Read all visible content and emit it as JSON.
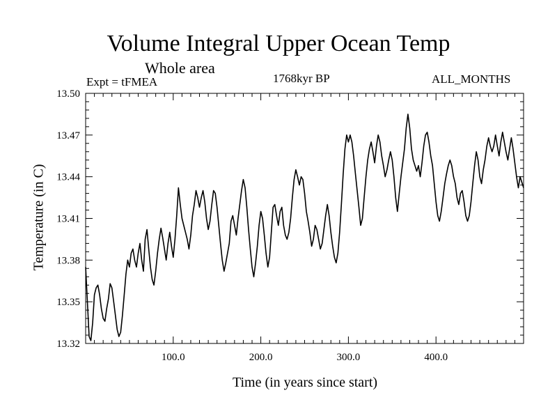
{
  "chart_data": {
    "type": "line",
    "title": "Volume Integral Upper Ocean Temp",
    "subtitle": "Whole area",
    "annotations": {
      "left": "Expt = tFMEA",
      "center": "1768kyr BP",
      "right": "ALL_MONTHS"
    },
    "xlabel": "Time (in years since start)",
    "ylabel": "Temperature (in C)",
    "xlim": [
      0,
      500
    ],
    "ylim": [
      13.32,
      13.5
    ],
    "xticks": [
      100,
      200,
      300,
      400
    ],
    "xtick_labels": [
      "100.0",
      "200.0",
      "300.0",
      "400.0"
    ],
    "yticks": [
      13.32,
      13.35,
      13.38,
      13.41,
      13.44,
      13.47,
      13.5
    ],
    "ytick_labels": [
      "13.32",
      "13.35",
      "13.38",
      "13.41",
      "13.44",
      "13.47",
      "13.50"
    ],
    "series": [
      {
        "name": "Volume Integral Upper Ocean Temp",
        "color": "#000000",
        "points": [
          [
            0,
            13.375
          ],
          [
            2,
            13.35
          ],
          [
            4,
            13.325
          ],
          [
            6,
            13.322
          ],
          [
            8,
            13.335
          ],
          [
            10,
            13.355
          ],
          [
            12,
            13.36
          ],
          [
            14,
            13.362
          ],
          [
            16,
            13.355
          ],
          [
            18,
            13.345
          ],
          [
            20,
            13.338
          ],
          [
            22,
            13.336
          ],
          [
            24,
            13.345
          ],
          [
            26,
            13.352
          ],
          [
            28,
            13.363
          ],
          [
            30,
            13.36
          ],
          [
            32,
            13.35
          ],
          [
            34,
            13.34
          ],
          [
            36,
            13.33
          ],
          [
            38,
            13.325
          ],
          [
            40,
            13.328
          ],
          [
            42,
            13.34
          ],
          [
            44,
            13.355
          ],
          [
            46,
            13.37
          ],
          [
            48,
            13.38
          ],
          [
            50,
            13.375
          ],
          [
            52,
            13.385
          ],
          [
            54,
            13.388
          ],
          [
            56,
            13.38
          ],
          [
            58,
            13.375
          ],
          [
            60,
            13.385
          ],
          [
            62,
            13.392
          ],
          [
            64,
            13.38
          ],
          [
            66,
            13.372
          ],
          [
            68,
            13.395
          ],
          [
            70,
            13.402
          ],
          [
            72,
            13.388
          ],
          [
            74,
            13.375
          ],
          [
            76,
            13.366
          ],
          [
            78,
            13.362
          ],
          [
            80,
            13.372
          ],
          [
            82,
            13.385
          ],
          [
            84,
            13.395
          ],
          [
            86,
            13.403
          ],
          [
            88,
            13.396
          ],
          [
            90,
            13.388
          ],
          [
            92,
            13.38
          ],
          [
            94,
            13.392
          ],
          [
            96,
            13.4
          ],
          [
            98,
            13.39
          ],
          [
            100,
            13.382
          ],
          [
            102,
            13.395
          ],
          [
            104,
            13.412
          ],
          [
            106,
            13.432
          ],
          [
            108,
            13.42
          ],
          [
            110,
            13.41
          ],
          [
            112,
            13.405
          ],
          [
            114,
            13.4
          ],
          [
            116,
            13.395
          ],
          [
            118,
            13.388
          ],
          [
            120,
            13.398
          ],
          [
            122,
            13.412
          ],
          [
            124,
            13.42
          ],
          [
            126,
            13.43
          ],
          [
            128,
            13.425
          ],
          [
            130,
            13.418
          ],
          [
            132,
            13.425
          ],
          [
            134,
            13.43
          ],
          [
            136,
            13.422
          ],
          [
            138,
            13.41
          ],
          [
            140,
            13.402
          ],
          [
            142,
            13.408
          ],
          [
            144,
            13.42
          ],
          [
            146,
            13.43
          ],
          [
            148,
            13.428
          ],
          [
            150,
            13.418
          ],
          [
            152,
            13.405
          ],
          [
            154,
            13.392
          ],
          [
            156,
            13.38
          ],
          [
            158,
            13.372
          ],
          [
            160,
            13.378
          ],
          [
            162,
            13.385
          ],
          [
            164,
            13.392
          ],
          [
            166,
            13.408
          ],
          [
            168,
            13.412
          ],
          [
            170,
            13.405
          ],
          [
            172,
            13.398
          ],
          [
            174,
            13.41
          ],
          [
            176,
            13.42
          ],
          [
            178,
            13.43
          ],
          [
            180,
            13.438
          ],
          [
            182,
            13.432
          ],
          [
            184,
            13.418
          ],
          [
            186,
            13.402
          ],
          [
            188,
            13.388
          ],
          [
            190,
            13.375
          ],
          [
            192,
            13.368
          ],
          [
            194,
            13.378
          ],
          [
            196,
            13.39
          ],
          [
            198,
            13.405
          ],
          [
            200,
            13.415
          ],
          [
            202,
            13.41
          ],
          [
            204,
            13.398
          ],
          [
            206,
            13.385
          ],
          [
            208,
            13.375
          ],
          [
            210,
            13.382
          ],
          [
            212,
            13.4
          ],
          [
            214,
            13.418
          ],
          [
            216,
            13.42
          ],
          [
            218,
            13.412
          ],
          [
            220,
            13.405
          ],
          [
            222,
            13.415
          ],
          [
            224,
            13.418
          ],
          [
            226,
            13.405
          ],
          [
            228,
            13.398
          ],
          [
            230,
            13.395
          ],
          [
            232,
            13.4
          ],
          [
            234,
            13.41
          ],
          [
            236,
            13.425
          ],
          [
            238,
            13.438
          ],
          [
            240,
            13.445
          ],
          [
            242,
            13.44
          ],
          [
            244,
            13.434
          ],
          [
            246,
            13.44
          ],
          [
            248,
            13.438
          ],
          [
            250,
            13.428
          ],
          [
            252,
            13.415
          ],
          [
            254,
            13.408
          ],
          [
            256,
            13.4
          ],
          [
            258,
            13.39
          ],
          [
            260,
            13.395
          ],
          [
            262,
            13.405
          ],
          [
            264,
            13.402
          ],
          [
            266,
            13.395
          ],
          [
            268,
            13.388
          ],
          [
            270,
            13.392
          ],
          [
            272,
            13.402
          ],
          [
            274,
            13.412
          ],
          [
            276,
            13.42
          ],
          [
            278,
            13.412
          ],
          [
            280,
            13.4
          ],
          [
            282,
            13.39
          ],
          [
            284,
            13.382
          ],
          [
            286,
            13.378
          ],
          [
            288,
            13.385
          ],
          [
            290,
            13.4
          ],
          [
            292,
            13.42
          ],
          [
            294,
            13.442
          ],
          [
            296,
            13.46
          ],
          [
            298,
            13.47
          ],
          [
            300,
            13.465
          ],
          [
            302,
            13.47
          ],
          [
            304,
            13.465
          ],
          [
            306,
            13.455
          ],
          [
            308,
            13.442
          ],
          [
            310,
            13.43
          ],
          [
            312,
            13.418
          ],
          [
            314,
            13.405
          ],
          [
            316,
            13.41
          ],
          [
            318,
            13.425
          ],
          [
            320,
            13.44
          ],
          [
            322,
            13.452
          ],
          [
            324,
            13.46
          ],
          [
            326,
            13.465
          ],
          [
            328,
            13.458
          ],
          [
            330,
            13.45
          ],
          [
            332,
            13.462
          ],
          [
            334,
            13.47
          ],
          [
            336,
            13.465
          ],
          [
            338,
            13.455
          ],
          [
            340,
            13.448
          ],
          [
            342,
            13.44
          ],
          [
            344,
            13.445
          ],
          [
            346,
            13.452
          ],
          [
            348,
            13.458
          ],
          [
            350,
            13.452
          ],
          [
            352,
            13.44
          ],
          [
            354,
            13.425
          ],
          [
            356,
            13.415
          ],
          [
            358,
            13.428
          ],
          [
            360,
            13.44
          ],
          [
            362,
            13.45
          ],
          [
            364,
            13.46
          ],
          [
            366,
            13.475
          ],
          [
            368,
            13.485
          ],
          [
            370,
            13.475
          ],
          [
            372,
            13.46
          ],
          [
            374,
            13.452
          ],
          [
            376,
            13.448
          ],
          [
            378,
            13.444
          ],
          [
            380,
            13.448
          ],
          [
            382,
            13.44
          ],
          [
            384,
            13.45
          ],
          [
            386,
            13.462
          ],
          [
            388,
            13.47
          ],
          [
            390,
            13.472
          ],
          [
            392,
            13.465
          ],
          [
            394,
            13.455
          ],
          [
            396,
            13.448
          ],
          [
            398,
            13.435
          ],
          [
            400,
            13.422
          ],
          [
            402,
            13.412
          ],
          [
            404,
            13.408
          ],
          [
            406,
            13.415
          ],
          [
            408,
            13.425
          ],
          [
            410,
            13.435
          ],
          [
            412,
            13.442
          ],
          [
            414,
            13.448
          ],
          [
            416,
            13.452
          ],
          [
            418,
            13.448
          ],
          [
            420,
            13.44
          ],
          [
            422,
            13.435
          ],
          [
            424,
            13.425
          ],
          [
            426,
            13.42
          ],
          [
            428,
            13.428
          ],
          [
            430,
            13.43
          ],
          [
            432,
            13.422
          ],
          [
            434,
            13.412
          ],
          [
            436,
            13.408
          ],
          [
            438,
            13.412
          ],
          [
            440,
            13.422
          ],
          [
            442,
            13.435
          ],
          [
            444,
            13.448
          ],
          [
            446,
            13.458
          ],
          [
            448,
            13.452
          ],
          [
            450,
            13.44
          ],
          [
            452,
            13.435
          ],
          [
            454,
            13.445
          ],
          [
            456,
            13.452
          ],
          [
            458,
            13.462
          ],
          [
            460,
            13.468
          ],
          [
            462,
            13.462
          ],
          [
            464,
            13.458
          ],
          [
            466,
            13.462
          ],
          [
            468,
            13.47
          ],
          [
            470,
            13.462
          ],
          [
            472,
            13.455
          ],
          [
            474,
            13.465
          ],
          [
            476,
            13.472
          ],
          [
            478,
            13.465
          ],
          [
            480,
            13.458
          ],
          [
            482,
            13.452
          ],
          [
            484,
            13.46
          ],
          [
            486,
            13.468
          ],
          [
            488,
            13.46
          ],
          [
            490,
            13.45
          ],
          [
            492,
            13.44
          ],
          [
            494,
            13.432
          ],
          [
            496,
            13.44
          ],
          [
            498,
            13.436
          ],
          [
            500,
            13.432
          ]
        ]
      }
    ]
  }
}
